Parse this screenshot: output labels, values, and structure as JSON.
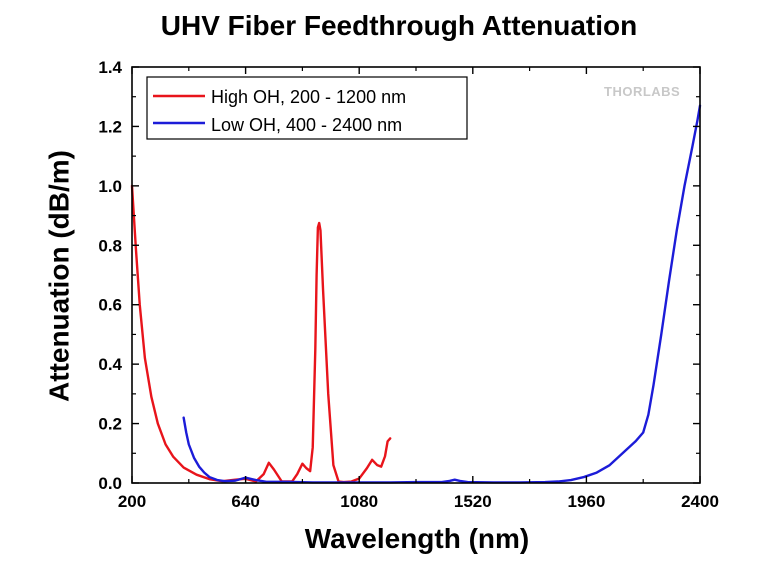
{
  "chart_data": {
    "type": "line",
    "title": "UHV Fiber Feedthrough Attenuation",
    "xlabel": "Wavelength (nm)",
    "ylabel": "Attenuation (dB/m)",
    "xlim": [
      200,
      2400
    ],
    "ylim": [
      0,
      1.4
    ],
    "xticks": [
      200,
      640,
      1080,
      1520,
      1960,
      2400
    ],
    "xtick_labels": [
      "200",
      "640",
      "1080",
      "1520",
      "1960",
      "2400"
    ],
    "yticks": [
      0,
      0.2,
      0.4,
      0.6,
      0.8,
      1.0,
      1.2,
      1.4
    ],
    "ytick_labels": [
      "0.0",
      "0.2",
      "0.4",
      "0.6",
      "0.8",
      "1.0",
      "1.2",
      "1.4"
    ],
    "legend_position": "top-left",
    "watermark": "THORLABS",
    "series": [
      {
        "name": "High OH, 200 - 1200 nm",
        "color": "#e8141b",
        "x": [
          200,
          205,
          215,
          230,
          250,
          275,
          300,
          330,
          360,
          400,
          450,
          500,
          550,
          600,
          640,
          680,
          710,
          730,
          750,
          780,
          820,
          840,
          860,
          875,
          890,
          900,
          910,
          915,
          920,
          925,
          930,
          940,
          960,
          980,
          1000,
          1020,
          1050,
          1080,
          1110,
          1130,
          1150,
          1165,
          1180,
          1190,
          1200
        ],
        "y": [
          1.0,
          0.93,
          0.79,
          0.6,
          0.42,
          0.29,
          0.2,
          0.13,
          0.088,
          0.052,
          0.028,
          0.013,
          0.006,
          0.011,
          0.014,
          0.005,
          0.03,
          0.068,
          0.045,
          0.005,
          0.005,
          0.03,
          0.065,
          0.05,
          0.04,
          0.12,
          0.45,
          0.7,
          0.86,
          0.875,
          0.85,
          0.65,
          0.3,
          0.06,
          0.005,
          0.003,
          0.005,
          0.015,
          0.05,
          0.078,
          0.06,
          0.055,
          0.09,
          0.14,
          0.15
        ]
      },
      {
        "name": "Low OH, 400 - 2400 nm",
        "color": "#1c1cd8",
        "x": [
          400,
          410,
          420,
          440,
          460,
          480,
          500,
          530,
          560,
          600,
          640,
          680,
          720,
          800,
          900,
          1000,
          1100,
          1200,
          1300,
          1400,
          1430,
          1450,
          1470,
          1500,
          1600,
          1700,
          1800,
          1850,
          1900,
          1950,
          2000,
          2050,
          2100,
          2150,
          2180,
          2200,
          2220,
          2250,
          2280,
          2310,
          2340,
          2370,
          2390,
          2400
        ],
        "y": [
          0.22,
          0.17,
          0.13,
          0.085,
          0.055,
          0.035,
          0.02,
          0.01,
          0.006,
          0.008,
          0.018,
          0.01,
          0.004,
          0.004,
          0.002,
          0.002,
          0.002,
          0.002,
          0.003,
          0.003,
          0.007,
          0.011,
          0.007,
          0.003,
          0.002,
          0.002,
          0.003,
          0.005,
          0.01,
          0.02,
          0.035,
          0.06,
          0.1,
          0.14,
          0.17,
          0.23,
          0.33,
          0.5,
          0.68,
          0.85,
          1.0,
          1.13,
          1.22,
          1.27
        ]
      }
    ]
  }
}
